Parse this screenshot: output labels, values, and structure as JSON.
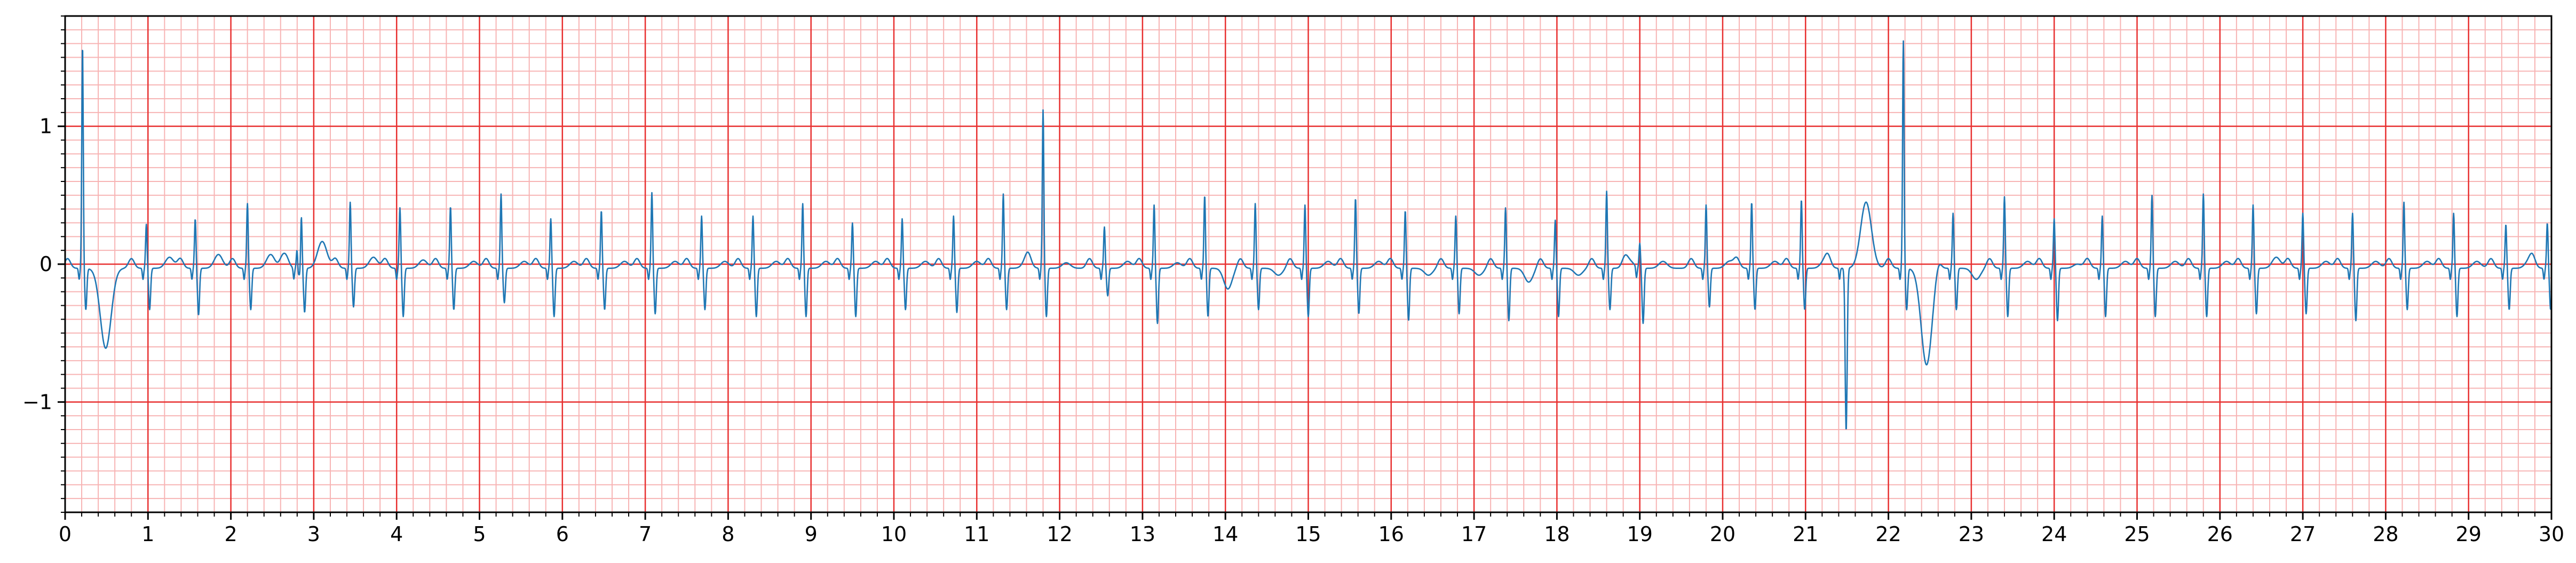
{
  "chart_data": {
    "type": "line",
    "title": "",
    "xlabel": "",
    "ylabel": "",
    "xlim": [
      0,
      30
    ],
    "ylim": [
      -1.8,
      1.8
    ],
    "x_ticks": [
      0,
      1,
      2,
      3,
      4,
      5,
      6,
      7,
      8,
      9,
      10,
      11,
      12,
      13,
      14,
      15,
      16,
      17,
      18,
      19,
      20,
      21,
      22,
      23,
      24,
      25,
      26,
      27,
      28,
      29,
      30
    ],
    "x_tick_labels": [
      "0",
      "1",
      "2",
      "3",
      "4",
      "5",
      "6",
      "7",
      "8",
      "9",
      "10",
      "11",
      "12",
      "13",
      "14",
      "15",
      "16",
      "17",
      "18",
      "19",
      "20",
      "21",
      "22",
      "23",
      "24",
      "25",
      "26",
      "27",
      "28",
      "29",
      "30"
    ],
    "y_ticks": [
      -1,
      0,
      1
    ],
    "y_tick_labels": [
      "−1",
      "0",
      "1"
    ],
    "x_minor_step": 0.2,
    "y_minor_step": 0.1,
    "grid": true,
    "colors": {
      "line": "#1f77b4",
      "major_grid": "#e83030",
      "minor_grid": "#f7b4b4",
      "axes": "#000000"
    },
    "series": [
      {
        "name": "",
        "baseline": -0.03,
        "beats": [
          {
            "r_time": 0.21,
            "r_amp": 1.62,
            "s_amp": -0.3,
            "t_amp": -0.58
          },
          {
            "r_time": 0.98,
            "r_amp": 0.32,
            "s_amp": -0.3,
            "t_amp": 0.08
          },
          {
            "r_time": 1.57,
            "r_amp": 0.36,
            "s_amp": -0.34,
            "t_amp": 0.1
          },
          {
            "r_time": 2.2,
            "r_amp": 0.47,
            "s_amp": -0.3,
            "t_amp": 0.1
          },
          {
            "r_time": 2.8,
            "r_amp": 0.16,
            "s_amp": -0.1,
            "t_amp": 0.12
          },
          {
            "r_time": 2.85,
            "r_amp": 0.44,
            "s_amp": -0.32,
            "t_amp": 0.1
          },
          {
            "r_time": 3.44,
            "r_amp": 0.48,
            "s_amp": -0.28,
            "t_amp": 0.08
          },
          {
            "r_time": 4.04,
            "r_amp": 0.44,
            "s_amp": -0.35,
            "t_amp": 0.06
          },
          {
            "r_time": 4.65,
            "r_amp": 0.45,
            "s_amp": -0.3,
            "t_amp": 0.05
          },
          {
            "r_time": 5.26,
            "r_amp": 0.54,
            "s_amp": -0.25,
            "t_amp": 0.05
          },
          {
            "r_time": 5.86,
            "r_amp": 0.36,
            "s_amp": -0.35,
            "t_amp": 0.05
          },
          {
            "r_time": 6.47,
            "r_amp": 0.42,
            "s_amp": -0.3,
            "t_amp": 0.05
          },
          {
            "r_time": 7.08,
            "r_amp": 0.55,
            "s_amp": -0.33,
            "t_amp": 0.05
          },
          {
            "r_time": 7.68,
            "r_amp": 0.38,
            "s_amp": -0.3,
            "t_amp": 0.05
          },
          {
            "r_time": 8.3,
            "r_amp": 0.38,
            "s_amp": -0.35,
            "t_amp": 0.05
          },
          {
            "r_time": 8.9,
            "r_amp": 0.47,
            "s_amp": -0.35,
            "t_amp": 0.05
          },
          {
            "r_time": 9.5,
            "r_amp": 0.33,
            "s_amp": -0.35,
            "t_amp": 0.05
          },
          {
            "r_time": 10.1,
            "r_amp": 0.36,
            "s_amp": -0.3,
            "t_amp": 0.05
          },
          {
            "r_time": 10.72,
            "r_amp": 0.38,
            "s_amp": -0.32,
            "t_amp": 0.05
          },
          {
            "r_time": 11.32,
            "r_amp": 0.54,
            "s_amp": -0.3,
            "t_amp": 0.05
          },
          {
            "r_time": 11.8,
            "r_amp": 1.15,
            "s_amp": -0.35,
            "t_amp": 0.04
          },
          {
            "r_time": 12.54,
            "r_amp": 0.3,
            "s_amp": -0.2,
            "t_amp": 0.05
          },
          {
            "r_time": 13.14,
            "r_amp": 0.46,
            "s_amp": -0.4,
            "t_amp": 0.04
          },
          {
            "r_time": 13.75,
            "r_amp": 0.53,
            "s_amp": -0.35,
            "t_amp": -0.15
          },
          {
            "r_time": 14.36,
            "r_amp": 0.47,
            "s_amp": -0.3,
            "t_amp": -0.05
          },
          {
            "r_time": 14.96,
            "r_amp": 0.46,
            "s_amp": -0.35,
            "t_amp": 0.05
          },
          {
            "r_time": 15.57,
            "r_amp": 0.51,
            "s_amp": -0.33,
            "t_amp": 0.05
          },
          {
            "r_time": 16.17,
            "r_amp": 0.42,
            "s_amp": -0.38,
            "t_amp": -0.05
          },
          {
            "r_time": 16.78,
            "r_amp": 0.38,
            "s_amp": -0.33,
            "t_amp": -0.05
          },
          {
            "r_time": 17.38,
            "r_amp": 0.44,
            "s_amp": -0.38,
            "t_amp": -0.1
          },
          {
            "r_time": 17.98,
            "r_amp": 0.35,
            "s_amp": -0.35,
            "t_amp": -0.05
          },
          {
            "r_time": 18.6,
            "r_amp": 0.56,
            "s_amp": -0.3,
            "t_amp": 0.05
          },
          {
            "r_time": 19.0,
            "r_amp": 0.18,
            "s_amp": -0.4,
            "t_amp": 0.05
          },
          {
            "r_time": 19.8,
            "r_amp": 0.46,
            "s_amp": -0.28,
            "t_amp": 0.05
          },
          {
            "r_time": 20.35,
            "r_amp": 0.48,
            "s_amp": -0.3,
            "t_amp": 0.05
          },
          {
            "r_time": 20.95,
            "r_amp": 0.5,
            "s_amp": -0.3,
            "t_amp": 0.05
          },
          {
            "r_time": 21.45,
            "r_amp": 0.0,
            "s_amp": -1.18,
            "t_amp": 0.48
          },
          {
            "r_time": 22.18,
            "r_amp": 1.65,
            "s_amp": -0.3,
            "t_amp": -0.7
          },
          {
            "r_time": 22.78,
            "r_amp": 0.4,
            "s_amp": -0.3,
            "t_amp": -0.08
          },
          {
            "r_time": 23.4,
            "r_amp": 0.52,
            "s_amp": -0.35,
            "t_amp": 0.05
          },
          {
            "r_time": 24.0,
            "r_amp": 0.36,
            "s_amp": -0.38,
            "t_amp": 0.03
          },
          {
            "r_time": 24.58,
            "r_amp": 0.38,
            "s_amp": -0.35,
            "t_amp": 0.05
          },
          {
            "r_time": 25.18,
            "r_amp": 0.53,
            "s_amp": -0.35,
            "t_amp": 0.05
          },
          {
            "r_time": 25.8,
            "r_amp": 0.54,
            "s_amp": -0.35,
            "t_amp": 0.05
          },
          {
            "r_time": 26.4,
            "r_amp": 0.46,
            "s_amp": -0.33,
            "t_amp": 0.08
          },
          {
            "r_time": 27.0,
            "r_amp": 0.4,
            "s_amp": -0.33,
            "t_amp": 0.05
          },
          {
            "r_time": 27.6,
            "r_amp": 0.4,
            "s_amp": -0.38,
            "t_amp": 0.05
          },
          {
            "r_time": 28.22,
            "r_amp": 0.48,
            "s_amp": -0.3,
            "t_amp": 0.05
          },
          {
            "r_time": 28.82,
            "r_amp": 0.4,
            "s_amp": -0.35,
            "t_amp": 0.05
          },
          {
            "r_time": 29.45,
            "r_amp": 0.32,
            "s_amp": -0.3,
            "t_amp": 0.05
          },
          {
            "r_time": 29.95,
            "r_amp": 0.33,
            "s_amp": -0.3,
            "t_amp": 0.05
          }
        ]
      }
    ]
  }
}
